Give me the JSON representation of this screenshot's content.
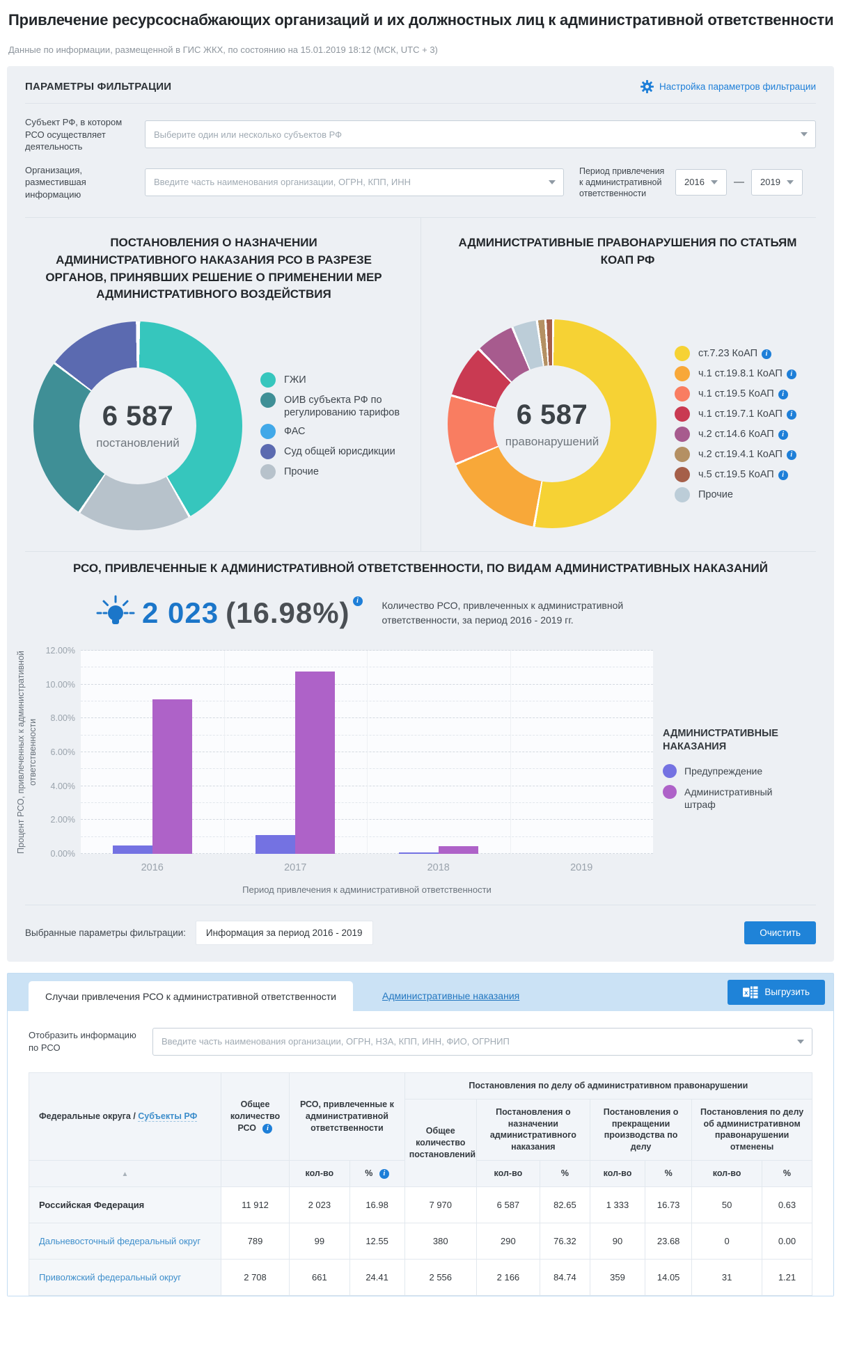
{
  "page": {
    "title": "Привлечение ресурсоснабжающих организаций и их должностных лиц к административной ответственности",
    "subtitle": "Данные по информации, размещенной в ГИС ЖКХ, по состоянию на 15.01.2019 18:12 (МСК, UTC + 3)"
  },
  "filters": {
    "panel_title": "ПАРАМЕТРЫ ФИЛЬТРАЦИИ",
    "settings_link": "Настройка параметров фильтрации",
    "subject_label": "Субъект РФ, в котором РСО осуществляет деятельность",
    "subject_placeholder": "Выберите один или несколько субъектов РФ",
    "org_label": "Организация, разместившая информацию",
    "org_placeholder": "Введите часть наименования организации, ОГРН, КПП, ИНН",
    "period_label": "Период привлечения к административной ответственности",
    "period_from": "2016",
    "period_dash": "—",
    "period_to": "2019"
  },
  "chart_data": [
    {
      "type": "pie",
      "title": "ПОСТАНОВЛЕНИЯ О НАЗНАЧЕНИИ АДМИНИСТРАТИВНОГО НАКАЗАНИЯ РСО В РАЗРЕЗЕ ОРГАНОВ, ПРИНЯВШИХ РЕШЕНИЕ О ПРИМЕНЕНИИ МЕР АДМИНИСТРАТИВНОГО ВОЗДЕЙСТВИЯ",
      "center_value": "6 587",
      "center_label": "постановлений",
      "legend_position": "right",
      "slices": [
        {
          "label": "ГЖИ",
          "color": "#36c6bd",
          "pct": 41.6,
          "info": false
        },
        {
          "label": "ОИВ субъекта РФ по регулированию тарифов",
          "color": "#3f8f96",
          "pct": 25.8,
          "info": false
        },
        {
          "label": "ФАС",
          "color": "#41a8e8",
          "pct": 0.3,
          "info": false
        },
        {
          "label": "Суд общей юрисдикции",
          "color": "#5b6ab0",
          "pct": 14.6,
          "info": false
        },
        {
          "label": "Прочие",
          "color": "#b7c2cb",
          "pct": 17.7,
          "info": false
        }
      ],
      "draw_order": [
        0,
        4,
        1,
        3,
        2
      ]
    },
    {
      "type": "pie",
      "title": "АДМИНИСТРАТИВНЫЕ ПРАВОНАРУШЕНИЯ ПО СТАТЬЯМ КОАП РФ",
      "center_value": "6 587",
      "center_label": "правонарушений",
      "legend_position": "right",
      "slices": [
        {
          "label": "ст.7.23 КоАП",
          "color": "#f6d234",
          "pct": 52.6,
          "info": true
        },
        {
          "label": "ч.1 ст.19.8.1 КоАП",
          "color": "#f8a839",
          "pct": 15.9,
          "info": true
        },
        {
          "label": "ч.1 ст.19.5 КоАП",
          "color": "#f97d61",
          "pct": 10.7,
          "info": true
        },
        {
          "label": "ч.1 ст.19.7.1 КоАП",
          "color": "#c93a52",
          "pct": 8.3,
          "info": true
        },
        {
          "label": "ч.2 ст.14.6 КоАП",
          "color": "#a75b8e",
          "pct": 6.1,
          "info": true
        },
        {
          "label": "ч.2 ст.19.4.1 КоАП",
          "color": "#b49063",
          "pct": 1.3,
          "info": true
        },
        {
          "label": "ч.5 ст.19.5 КоАП",
          "color": "#a55f49",
          "pct": 1.2,
          "info": true
        },
        {
          "label": "Прочие",
          "color": "#bccdd8",
          "pct": 3.9,
          "info": false
        }
      ],
      "draw_order": [
        0,
        1,
        2,
        3,
        4,
        7,
        5,
        6
      ]
    },
    {
      "type": "bar",
      "title": "РСО, ПРИВЛЕЧЕННЫЕ К АДМИНИСТРАТИВНОЙ ОТВЕТСТВЕННОСТИ, ПО ВИДАМ АДМИНИСТРАТИВНЫХ НАКАЗАНИЙ",
      "kpi_value": "2 023",
      "kpi_pct": "(16.98%)",
      "kpi_note": "Количество РСО, привлеченных к административной ответственности, за период 2016 - 2019 гг.",
      "categories": [
        "2016",
        "2017",
        "2018",
        "2019"
      ],
      "series": [
        {
          "name": "Предупреждение",
          "color": "#7472e2",
          "values": [
            0.5,
            1.1,
            0.07,
            0
          ]
        },
        {
          "name": "Административный штраф",
          "color": "#ae62c8",
          "values": [
            9.1,
            10.75,
            0.45,
            0
          ]
        }
      ],
      "ylabel": "Процент РСО, привлеченных к административной ответственности",
      "xlabel": "Период привлечения к административной ответственности",
      "ylim": [
        0,
        12
      ],
      "ytick_labels": [
        "0.00%",
        "2.00%",
        "4.00%",
        "6.00%",
        "8.00%",
        "10.00%",
        "12.00%"
      ],
      "grid": "dashed-horizontal",
      "legend_title": "АДМИНИСТРАТИВНЫЕ НАКАЗАНИЯ",
      "legend_position": "right"
    }
  ],
  "selected_filters": {
    "label": "Выбранные параметры фильтрации:",
    "chip": "Информация за период 2016 - 2019",
    "clear_button": "Очистить"
  },
  "table_section": {
    "tab_active": "Случаи привлечения РСО к административной ответственности",
    "tab_inactive": "Административные наказания",
    "export_button": "Выгрузить",
    "rso_filter_label": "Отобразить информацию по РСО",
    "rso_filter_placeholder": "Введите часть наименования организации, ОГРН, НЗА, КПП, ИНН, ФИО, ОГРНИП",
    "header": {
      "col_fed": "Федеральные округа / ",
      "col_fed_link": "Субъекты РФ",
      "col_total_rso": "Общее количество РСО",
      "col_rso_group": "РСО, привлеченные к административной ответственности",
      "col_post_group": "Постановления по делу об административном правонарушении",
      "col_total_post": "Общее количество постановлений",
      "col_assign": "Постановления о назначении административного наказания",
      "col_stop": "Постановления о прекращении производства по делу",
      "col_cancel": "Постановления по делу об административном правонарушении отменены",
      "sub_qty": "кол-во",
      "sub_pct": "%",
      "sort_arrow": "▲"
    },
    "rows": [
      {
        "name": "Российская Федерация",
        "style": "bold",
        "values": [
          "11 912",
          "2 023",
          "16.98",
          "7 970",
          "6 587",
          "82.65",
          "1 333",
          "16.73",
          "50",
          "0.63"
        ]
      },
      {
        "name": "Дальневосточный федеральный округ",
        "style": "link",
        "values": [
          "789",
          "99",
          "12.55",
          "380",
          "290",
          "76.32",
          "90",
          "23.68",
          "0",
          "0.00"
        ]
      },
      {
        "name": "Приволжский федеральный округ",
        "style": "link",
        "values": [
          "2 708",
          "661",
          "24.41",
          "2 556",
          "2 166",
          "84.74",
          "359",
          "14.05",
          "31",
          "1.21"
        ]
      }
    ]
  }
}
